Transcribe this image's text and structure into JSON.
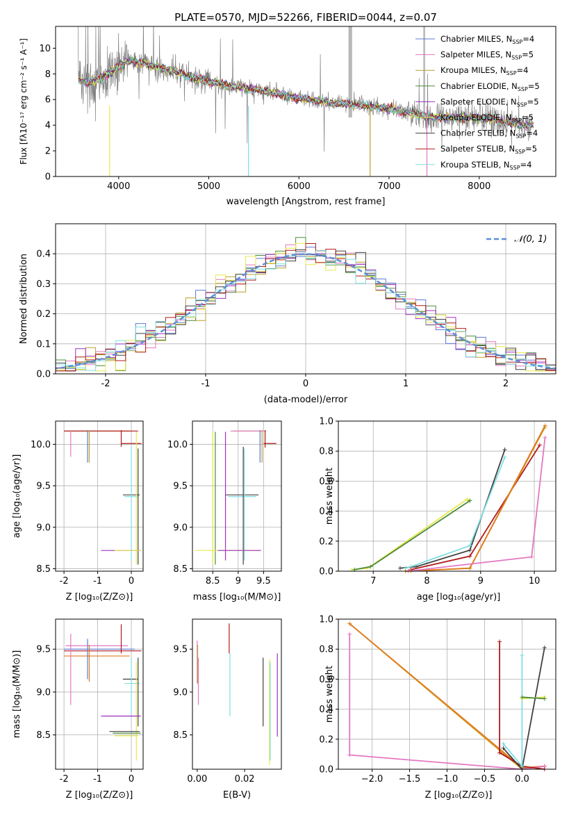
{
  "figure": {
    "title": "PLATE=0570, MJD=52266, FIBERID=0044, z=0.07"
  },
  "legend_models": [
    {
      "label": "Chabrier MILES",
      "nssp": "4",
      "color": "#5b7bd5"
    },
    {
      "label": "Salpeter MILES",
      "nssp": "5",
      "color": "#e377c2"
    },
    {
      "label": "Kroupa MILES",
      "nssp": "4",
      "color": "#bca02a"
    },
    {
      "label": "Chabrier ELODIE",
      "nssp": "5",
      "color": "#4a8a3a"
    },
    {
      "label": "Salpeter ELODIE",
      "nssp": "5",
      "color": "#9b30c0"
    },
    {
      "label": "Kroupa ELODIE",
      "nssp": "5",
      "color": "#e8e84a"
    },
    {
      "label": "Chabrier STELIB",
      "nssp": "4",
      "color": "#404040"
    },
    {
      "label": "Salpeter STELIB",
      "nssp": "5",
      "color": "#b01a1a"
    },
    {
      "label": "Kroupa STELIB",
      "nssp": "4",
      "color": "#7fdde0"
    }
  ],
  "legend_nssp_prefix": "N",
  "legend_nssp_sub": "SSP",
  "chart_data": [
    {
      "id": "spectrum",
      "type": "line",
      "xlabel": "wavelength [Angstrom, rest frame]",
      "ylabel": "Flux [fλ10⁻¹⁷ erg cm⁻² s⁻¹ A⁻¹]",
      "xlim": [
        3300,
        8850
      ],
      "ylim": [
        0,
        11.7
      ],
      "xticks": [
        4000,
        5000,
        6000,
        7000,
        8000
      ],
      "yticks": [
        0,
        2,
        4,
        6,
        8,
        10
      ],
      "data_color": "#808080",
      "continuum": [
        [
          3550,
          7.6
        ],
        [
          3650,
          7.3
        ],
        [
          3800,
          7.7
        ],
        [
          3950,
          8.3
        ],
        [
          4100,
          9.0
        ],
        [
          4300,
          8.8
        ],
        [
          4500,
          8.4
        ],
        [
          4800,
          7.8
        ],
        [
          5000,
          7.4
        ],
        [
          5200,
          7.1
        ],
        [
          5500,
          6.8
        ],
        [
          5800,
          6.4
        ],
        [
          6000,
          6.1
        ],
        [
          6300,
          5.8
        ],
        [
          6600,
          5.6
        ],
        [
          6900,
          5.4
        ],
        [
          7200,
          5.0
        ],
        [
          7500,
          4.6
        ],
        [
          7800,
          4.6
        ],
        [
          8100,
          4.5
        ],
        [
          8400,
          4.1
        ],
        [
          8600,
          3.9
        ]
      ]
    },
    {
      "id": "residuals",
      "type": "histogram",
      "xlabel": "(data-model)/error",
      "ylabel": "Normed distribution",
      "xlim": [
        -2.5,
        2.5
      ],
      "ylim": [
        0,
        0.5
      ],
      "xticks": [
        -2,
        -1,
        0,
        1,
        2
      ],
      "yticks": [
        0.0,
        0.1,
        0.2,
        0.3,
        0.4
      ],
      "reference_label": "𝒩(0, 1)",
      "reference_color": "#5b8fd9"
    },
    {
      "id": "age_vs_Z",
      "type": "errorbar",
      "xlabel": "Z [log₁₀(Z/Z⊙)]",
      "ylabel": "age  [log₁₀(age/yr)]",
      "xlim": [
        -2.25,
        0.35
      ],
      "ylim": [
        8.47,
        10.28
      ],
      "xticks": [
        -2,
        -1,
        0
      ],
      "yticks": [
        8.5,
        9.0,
        9.5,
        10.0
      ]
    },
    {
      "id": "age_vs_mass",
      "type": "errorbar",
      "xlabel": "mass [log₁₀(M/M⊙)]",
      "ylabel": "",
      "xlim": [
        8.1,
        9.85
      ],
      "ylim": [
        8.47,
        10.28
      ],
      "xticks": [
        8.5,
        9.0,
        9.5
      ],
      "yticks": [
        8.5,
        9.0,
        9.5,
        10.0
      ]
    },
    {
      "id": "weight_vs_age",
      "type": "line",
      "xlabel": "age  [log₁₀(age/yr)]",
      "ylabel": "mass weight",
      "xlim": [
        6.35,
        10.4
      ],
      "ylim": [
        0,
        1.0
      ],
      "xticks": [
        7,
        8,
        9,
        10
      ],
      "yticks": [
        0.0,
        0.2,
        0.4,
        0.6,
        0.8,
        1.0
      ]
    },
    {
      "id": "mass_vs_Z",
      "type": "errorbar",
      "xlabel": "Z [log₁₀(Z/Z⊙)]",
      "ylabel": "mass [log₁₀(M/M⊙)]",
      "xlim": [
        -2.25,
        0.35
      ],
      "ylim": [
        8.1,
        9.85
      ],
      "xticks": [
        -2,
        -1,
        0
      ],
      "yticks": [
        8.5,
        9.0,
        9.5
      ]
    },
    {
      "id": "mass_vs_ebv",
      "type": "errorbar",
      "xlabel": "E(B-V)",
      "ylabel": "",
      "xlim": [
        -0.002,
        0.0355
      ],
      "ylim": [
        8.1,
        9.85
      ],
      "xticks": [
        0.0,
        0.02
      ],
      "yticks": [
        8.5,
        9.0,
        9.5
      ],
      "points": [
        {
          "x": 0.0,
          "ylo": 9.1,
          "yhi": 9.6,
          "model": 1
        },
        {
          "x": 0.0005,
          "ylo": 8.85,
          "yhi": 9.4,
          "model": 1
        },
        {
          "x": 0.0002,
          "ylo": 9.1,
          "yhi": 9.55,
          "model": 2
        },
        {
          "x": 0.0135,
          "ylo": 9.45,
          "yhi": 9.8,
          "model": 7
        },
        {
          "x": 0.0138,
          "ylo": 8.72,
          "yhi": 9.45,
          "model": 8
        },
        {
          "x": 0.0278,
          "ylo": 8.6,
          "yhi": 9.4,
          "model": 6
        },
        {
          "x": 0.0305,
          "ylo": 8.15,
          "yhi": 9.38,
          "model": 5
        },
        {
          "x": 0.0308,
          "ylo": 8.2,
          "yhi": 9.35,
          "model": 8
        },
        {
          "x": 0.0338,
          "ylo": 8.48,
          "yhi": 9.45,
          "model": 4
        }
      ]
    },
    {
      "id": "weight_vs_Z",
      "type": "line",
      "xlabel": "Z [log₁₀(Z/Z⊙)]",
      "ylabel": "mass weight",
      "xlim": [
        -2.45,
        0.45
      ],
      "ylim": [
        0,
        1.0
      ],
      "xticks": [
        -2.0,
        -1.5,
        -1.0,
        -0.5,
        0.0
      ],
      "xticklabels": [
        "−2.0",
        "−1.5",
        "−1.0",
        "−0.5",
        "0.0"
      ],
      "yticks": [
        0.0,
        0.2,
        0.4,
        0.6,
        0.8,
        1.0
      ]
    }
  ]
}
